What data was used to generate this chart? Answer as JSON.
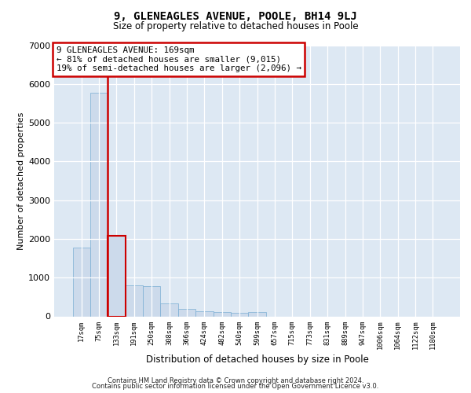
{
  "title_line1": "9, GLENEAGLES AVENUE, POOLE, BH14 9LJ",
  "title_line2": "Size of property relative to detached houses in Poole",
  "xlabel": "Distribution of detached houses by size in Poole",
  "ylabel": "Number of detached properties",
  "footer_line1": "Contains HM Land Registry data © Crown copyright and database right 2024.",
  "footer_line2": "Contains public sector information licensed under the Open Government Licence v3.0.",
  "categories": [
    "17sqm",
    "75sqm",
    "133sqm",
    "191sqm",
    "250sqm",
    "308sqm",
    "366sqm",
    "424sqm",
    "482sqm",
    "540sqm",
    "599sqm",
    "657sqm",
    "715sqm",
    "773sqm",
    "831sqm",
    "889sqm",
    "947sqm",
    "1006sqm",
    "1064sqm",
    "1122sqm",
    "1180sqm"
  ],
  "values": [
    1780,
    5780,
    2080,
    800,
    790,
    340,
    195,
    125,
    110,
    100,
    110,
    0,
    0,
    0,
    0,
    0,
    0,
    0,
    0,
    0,
    0
  ],
  "bar_color": "#ccdaeb",
  "bar_edge_color": "#7aaed4",
  "highlight_bar_index": 2,
  "vline_color": "#cc0000",
  "annotation_line1": "9 GLENEAGLES AVENUE: 169sqm",
  "annotation_line2": "← 81% of detached houses are smaller (9,015)",
  "annotation_line3": "19% of semi-detached houses are larger (2,096) →",
  "annotation_box_edge_color": "#cc0000",
  "ylim": [
    0,
    7000
  ],
  "yticks": [
    0,
    1000,
    2000,
    3000,
    4000,
    5000,
    6000,
    7000
  ],
  "background_color": "#dde8f3",
  "grid_color": "#ffffff"
}
